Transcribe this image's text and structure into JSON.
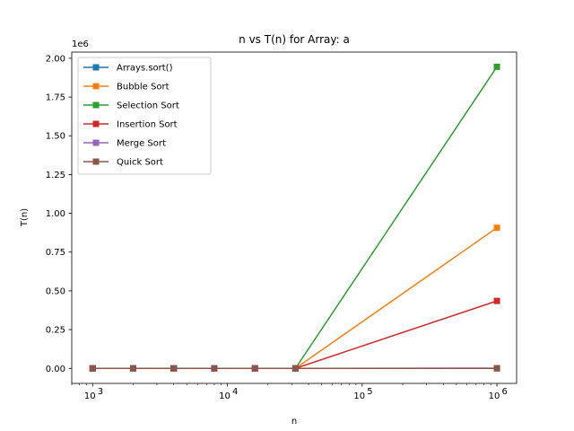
{
  "chart_data": {
    "type": "line",
    "title": "n vs T(n) for Array: a",
    "xlabel": "n",
    "ylabel": "T(n)",
    "y_offset_label": "1e6",
    "x_scale": "log",
    "xlim": [
      700,
      1400000
    ],
    "ylim": [
      -97000,
      2040000
    ],
    "x": [
      1000,
      2000,
      4000,
      8000,
      16000,
      32000,
      1000000
    ],
    "x_ticks": [
      {
        "value": 1000,
        "base": "10",
        "exp": "3"
      },
      {
        "value": 10000,
        "base": "10",
        "exp": "4"
      },
      {
        "value": 100000,
        "base": "10",
        "exp": "5"
      },
      {
        "value": 1000000,
        "base": "10",
        "exp": "6"
      }
    ],
    "y_ticks": [
      {
        "value": 0,
        "label": "0.00"
      },
      {
        "value": 250000,
        "label": "0.25"
      },
      {
        "value": 500000,
        "label": "0.50"
      },
      {
        "value": 750000,
        "label": "0.75"
      },
      {
        "value": 1000000,
        "label": "1.00"
      },
      {
        "value": 1250000,
        "label": "1.25"
      },
      {
        "value": 1500000,
        "label": "1.50"
      },
      {
        "value": 1750000,
        "label": "1.75"
      },
      {
        "value": 2000000,
        "label": "2.00"
      }
    ],
    "grid": false,
    "legend_position": "upper-left",
    "marker": "square",
    "series": [
      {
        "name": "Arrays.sort()",
        "color": "#1f77b4",
        "values": [
          0,
          0,
          0,
          0,
          0,
          0,
          0
        ]
      },
      {
        "name": "Bubble Sort",
        "color": "#ff7f0e",
        "values": [
          0,
          0,
          0,
          0,
          0,
          0,
          907000
        ]
      },
      {
        "name": "Selection Sort",
        "color": "#2ca02c",
        "values": [
          0,
          0,
          0,
          0,
          0,
          0,
          1945000
        ]
      },
      {
        "name": "Insertion Sort",
        "color": "#d62728",
        "values": [
          0,
          0,
          0,
          0,
          0,
          0,
          435000
        ]
      },
      {
        "name": "Merge Sort",
        "color": "#9467bd",
        "values": [
          0,
          0,
          0,
          0,
          0,
          0,
          1000
        ]
      },
      {
        "name": "Quick Sort",
        "color": "#8c564b",
        "values": [
          0,
          0,
          0,
          0,
          0,
          0,
          1000
        ]
      }
    ]
  }
}
